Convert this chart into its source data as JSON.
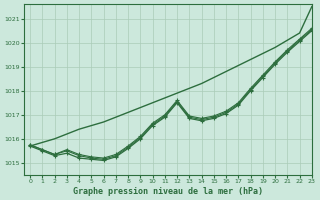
{
  "title": "Graphe pression niveau de la mer (hPa)",
  "bg_color": "#cce8dc",
  "grid_color": "#aaccb8",
  "line_color": "#2d6e3e",
  "xlim": [
    -0.5,
    23
  ],
  "ylim": [
    1014.5,
    1021.6
  ],
  "yticks": [
    1015,
    1016,
    1017,
    1018,
    1019,
    1020,
    1021
  ],
  "xticks": [
    0,
    1,
    2,
    3,
    4,
    5,
    6,
    7,
    8,
    9,
    10,
    11,
    12,
    13,
    14,
    15,
    16,
    17,
    18,
    19,
    20,
    21,
    22,
    23
  ],
  "series": [
    {
      "name": "straight_up",
      "y": [
        1015.7,
        1015.85,
        1016.0,
        1016.2,
        1016.4,
        1016.55,
        1016.7,
        1016.9,
        1017.1,
        1017.3,
        1017.5,
        1017.7,
        1017.9,
        1018.1,
        1018.3,
        1018.55,
        1018.8,
        1019.05,
        1019.3,
        1019.55,
        1019.8,
        1020.1,
        1020.4,
        1021.5
      ],
      "marker": false,
      "lw": 1.0
    },
    {
      "name": "u_shape_1",
      "y": [
        1015.7,
        1015.5,
        1015.3,
        1015.4,
        1015.2,
        1015.15,
        1015.1,
        1015.25,
        1015.6,
        1016.0,
        1016.55,
        1016.9,
        1017.5,
        1016.85,
        1016.75,
        1016.85,
        1017.05,
        1017.4,
        1018.0,
        1018.55,
        1019.1,
        1019.6,
        1020.05,
        1020.5
      ],
      "marker": true,
      "lw": 0.9
    },
    {
      "name": "u_shape_2",
      "y": [
        1015.75,
        1015.55,
        1015.35,
        1015.5,
        1015.3,
        1015.2,
        1015.15,
        1015.3,
        1015.65,
        1016.05,
        1016.6,
        1016.95,
        1017.55,
        1016.9,
        1016.8,
        1016.9,
        1017.1,
        1017.45,
        1018.05,
        1018.6,
        1019.15,
        1019.65,
        1020.1,
        1020.55
      ],
      "marker": true,
      "lw": 0.8
    },
    {
      "name": "u_shape_3",
      "y": [
        1015.75,
        1015.55,
        1015.35,
        1015.55,
        1015.35,
        1015.25,
        1015.2,
        1015.35,
        1015.7,
        1016.1,
        1016.65,
        1017.0,
        1017.6,
        1016.95,
        1016.85,
        1016.95,
        1017.15,
        1017.5,
        1018.1,
        1018.65,
        1019.2,
        1019.7,
        1020.15,
        1020.6
      ],
      "marker": true,
      "lw": 0.8
    }
  ]
}
